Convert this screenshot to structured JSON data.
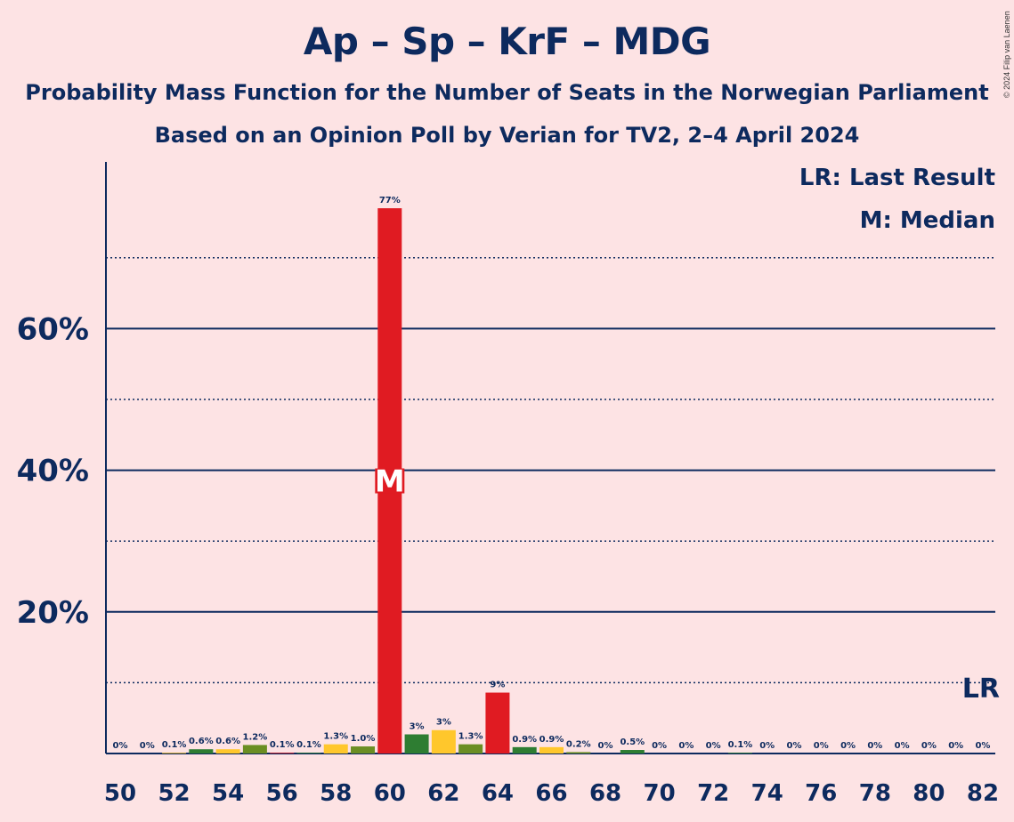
{
  "chart_data": {
    "type": "bar",
    "title": "Ap – Sp – KrF – MDG",
    "subtitle1": "Probability Mass Function for the Number of Seats in the Norwegian Parliament",
    "subtitle2": "Based on an Opinion Poll by Verian for TV2, 2–4 April 2024",
    "credit": "© 2024 Filip van Laenen",
    "legend": {
      "last_result": "LR: Last Result",
      "median": "M: Median"
    },
    "y_ticks": [
      {
        "value": 20,
        "label": "20%"
      },
      {
        "value": 40,
        "label": "40%"
      },
      {
        "value": 60,
        "label": "60%"
      }
    ],
    "y_minor_ticks": [
      10,
      30,
      50,
      70
    ],
    "ylim": [
      0,
      83
    ],
    "x_ticks": [
      50,
      52,
      54,
      56,
      58,
      60,
      62,
      64,
      66,
      68,
      70,
      72,
      74,
      76,
      78,
      80,
      82
    ],
    "xlim": [
      50,
      82
    ],
    "median_seat": 60,
    "median_marker": "M",
    "last_result_seat": 82,
    "last_result_marker": "LR",
    "colors": {
      "background": "#fde3e4",
      "text": "#0d2a5e",
      "red": "#e01b22",
      "green": "#2e7d32",
      "yellow": "#ffc72c",
      "olive": "#6b8e23"
    },
    "bars": [
      {
        "seat": 50,
        "value": 0,
        "label": "0%",
        "color": "red"
      },
      {
        "seat": 51,
        "value": 0,
        "label": "0%",
        "color": "green"
      },
      {
        "seat": 52,
        "value": 0.1,
        "label": "0.1%",
        "color": "yellow"
      },
      {
        "seat": 53,
        "value": 0.6,
        "label": "0.6%",
        "color": "green"
      },
      {
        "seat": 54,
        "value": 0.6,
        "label": "0.6%",
        "color": "yellow"
      },
      {
        "seat": 55,
        "value": 1.2,
        "label": "1.2%",
        "color": "olive"
      },
      {
        "seat": 56,
        "value": 0.1,
        "label": "0.1%",
        "color": "red"
      },
      {
        "seat": 57,
        "value": 0.1,
        "label": "0.1%",
        "color": "green"
      },
      {
        "seat": 58,
        "value": 1.3,
        "label": "1.3%",
        "color": "yellow"
      },
      {
        "seat": 59,
        "value": 1.0,
        "label": "1.0%",
        "color": "olive"
      },
      {
        "seat": 60,
        "value": 77,
        "label": "77%",
        "color": "red"
      },
      {
        "seat": 61,
        "value": 2.7,
        "label": "3%",
        "color": "green"
      },
      {
        "seat": 62,
        "value": 3.3,
        "label": "3%",
        "color": "yellow"
      },
      {
        "seat": 63,
        "value": 1.3,
        "label": "1.3%",
        "color": "olive"
      },
      {
        "seat": 64,
        "value": 8.6,
        "label": "9%",
        "color": "red"
      },
      {
        "seat": 65,
        "value": 0.9,
        "label": "0.9%",
        "color": "green"
      },
      {
        "seat": 66,
        "value": 0.9,
        "label": "0.9%",
        "color": "yellow"
      },
      {
        "seat": 67,
        "value": 0.2,
        "label": "0.2%",
        "color": "olive"
      },
      {
        "seat": 68,
        "value": 0,
        "label": "0%",
        "color": "red"
      },
      {
        "seat": 69,
        "value": 0.5,
        "label": "0.5%",
        "color": "green"
      },
      {
        "seat": 70,
        "value": 0,
        "label": "0%",
        "color": "yellow"
      },
      {
        "seat": 71,
        "value": 0,
        "label": "0%",
        "color": "olive"
      },
      {
        "seat": 72,
        "value": 0,
        "label": "0%",
        "color": "red"
      },
      {
        "seat": 73,
        "value": 0.1,
        "label": "0.1%",
        "color": "green"
      },
      {
        "seat": 74,
        "value": 0,
        "label": "0%",
        "color": "yellow"
      },
      {
        "seat": 75,
        "value": 0,
        "label": "0%",
        "color": "olive"
      },
      {
        "seat": 76,
        "value": 0,
        "label": "0%",
        "color": "red"
      },
      {
        "seat": 77,
        "value": 0,
        "label": "0%",
        "color": "green"
      },
      {
        "seat": 78,
        "value": 0,
        "label": "0%",
        "color": "yellow"
      },
      {
        "seat": 79,
        "value": 0,
        "label": "0%",
        "color": "olive"
      },
      {
        "seat": 80,
        "value": 0,
        "label": "0%",
        "color": "red"
      },
      {
        "seat": 81,
        "value": 0,
        "label": "0%",
        "color": "green"
      },
      {
        "seat": 82,
        "value": 0,
        "label": "0%",
        "color": "yellow"
      }
    ]
  }
}
